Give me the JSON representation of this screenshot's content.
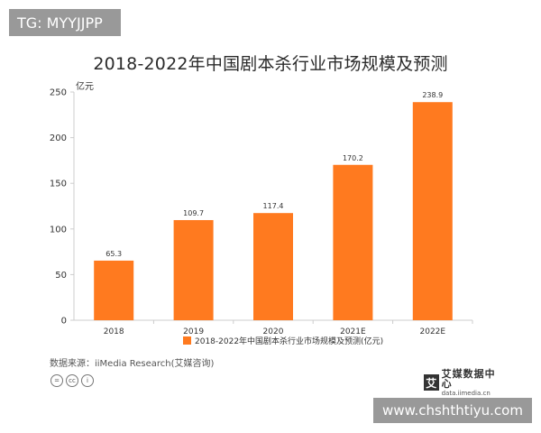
{
  "watermark_top": "TG: MYYJJPP",
  "watermark_bottom": "www.chshthtiyu.com",
  "source_text": "数据来源：iiMedia Research(艾媒咨询)",
  "brand": {
    "name": "艾媒数据中心",
    "url": "data.iimedia.cn",
    "mark": "艾"
  },
  "license_icons": [
    "=",
    "cc",
    "i"
  ],
  "colors": {
    "bar": "#ff7a1f",
    "axis": "#cccccc",
    "text": "#333333",
    "watermark": "#999999"
  },
  "chart_data": {
    "type": "bar",
    "title": "2018-2022年中国剧本杀行业市场规模及预测",
    "ylabel": "亿元",
    "categories": [
      "2018",
      "2019",
      "2020",
      "2021E",
      "2022E"
    ],
    "series": [
      {
        "name": "2018-2022年中国剧本杀行业市场规模及预测(亿元)",
        "values": [
          65.3,
          109.7,
          117.4,
          170.2,
          238.9
        ]
      }
    ],
    "value_labels": [
      "65.3",
      "109.7",
      "117.4",
      "170.2",
      "238.9"
    ],
    "ylim": [
      0,
      250
    ],
    "yticks": [
      0,
      50,
      100,
      150,
      200,
      250
    ],
    "grid": false,
    "legend_position": "bottom"
  }
}
